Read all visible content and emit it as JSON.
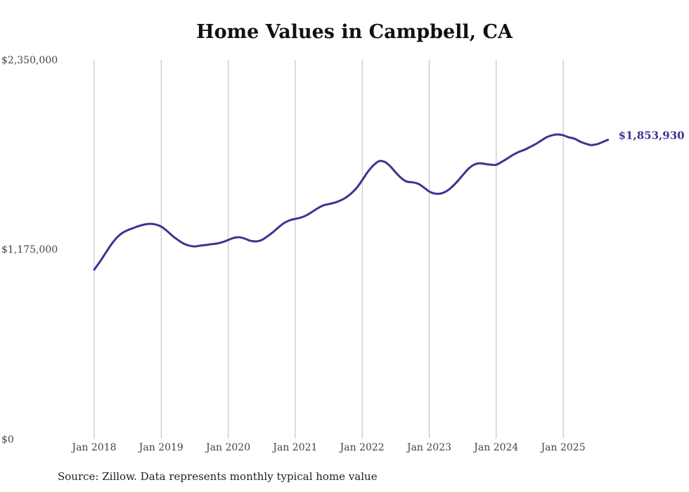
{
  "chart_data": {
    "type": "line",
    "title": "Home Values in Campbell, CA",
    "source": "Source: Zillow. Data represents monthly typical home value",
    "xlabel": "",
    "ylabel": "",
    "ylim": [
      0,
      2350000
    ],
    "yticks": [
      0,
      1175000,
      2350000
    ],
    "ytick_labels": [
      "$0",
      "$1,175,000",
      "$2,350,000"
    ],
    "xtick_labels": [
      "Jan 2018",
      "Jan 2019",
      "Jan 2020",
      "Jan 2021",
      "Jan 2022",
      "Jan 2023",
      "Jan 2024",
      "Jan 2025"
    ],
    "x_start": "Jan 2018",
    "x_unit": "month",
    "grid": "vertical",
    "line_color": "#3d3490",
    "end_label": "$1,853,930",
    "series": [
      {
        "name": "Typical home value",
        "values": [
          1048000,
          1096000,
          1149000,
          1201000,
          1245000,
          1275000,
          1293000,
          1306000,
          1319000,
          1328000,
          1332000,
          1328000,
          1315000,
          1289000,
          1258000,
          1232000,
          1210000,
          1197000,
          1192000,
          1197000,
          1201000,
          1206000,
          1210000,
          1219000,
          1232000,
          1245000,
          1249000,
          1240000,
          1227000,
          1223000,
          1232000,
          1254000,
          1280000,
          1310000,
          1337000,
          1354000,
          1363000,
          1371000,
          1385000,
          1406000,
          1428000,
          1446000,
          1455000,
          1463000,
          1476000,
          1494000,
          1520000,
          1555000,
          1603000,
          1655000,
          1695000,
          1721000,
          1717000,
          1690000,
          1651000,
          1616000,
          1594000,
          1590000,
          1581000,
          1559000,
          1533000,
          1520000,
          1520000,
          1533000,
          1559000,
          1594000,
          1634000,
          1673000,
          1699000,
          1708000,
          1704000,
          1699000,
          1699000,
          1717000,
          1738000,
          1760000,
          1778000,
          1791000,
          1808000,
          1826000,
          1848000,
          1869000,
          1882000,
          1887000,
          1882000,
          1869000,
          1861000,
          1843000,
          1830000,
          1821000,
          1826000,
          1839000,
          1853930
        ]
      }
    ]
  }
}
